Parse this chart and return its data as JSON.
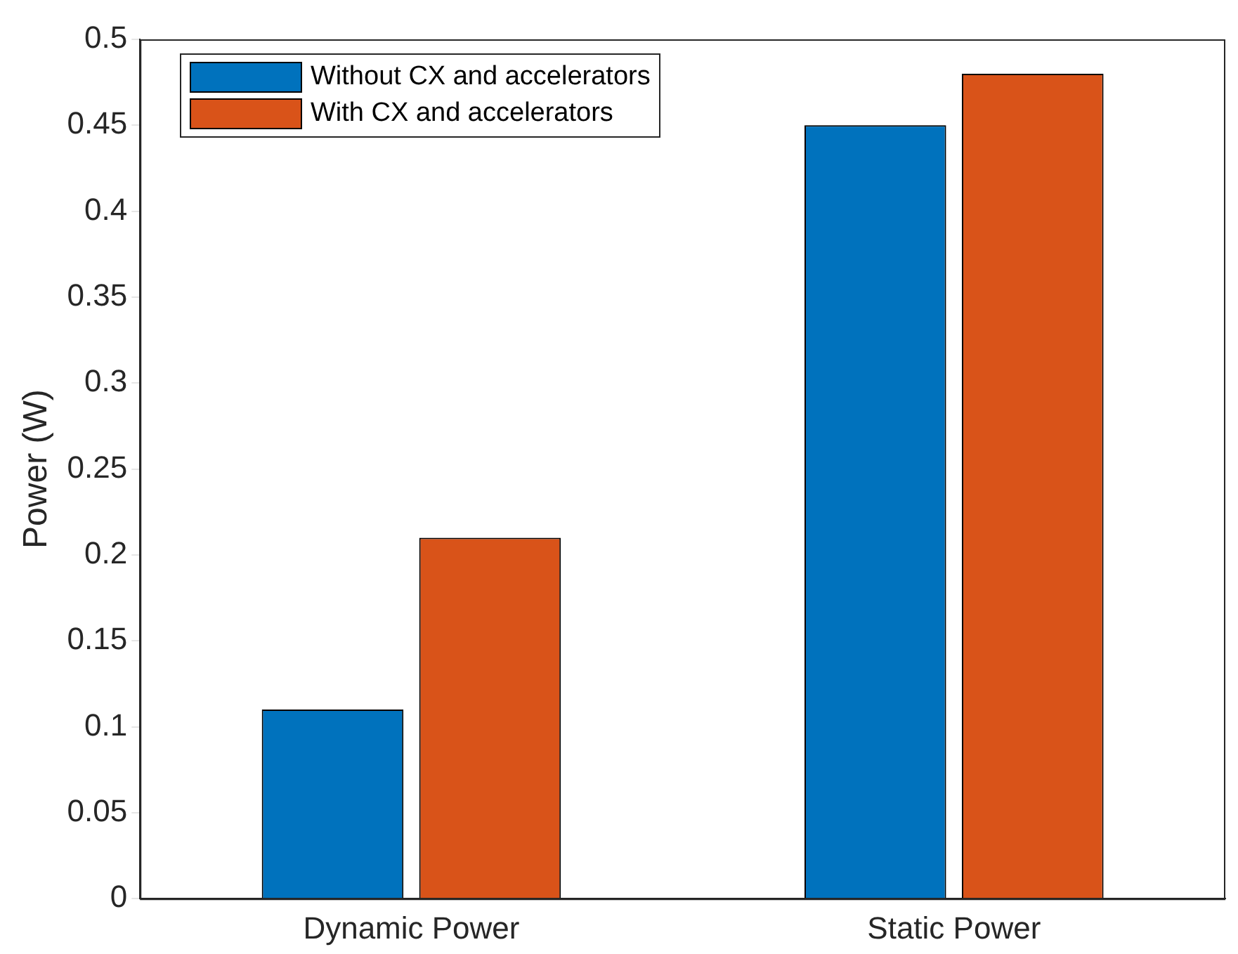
{
  "chart_data": {
    "type": "bar",
    "ylabel": "Power (W)",
    "categories": [
      "Dynamic Power",
      "Static Power"
    ],
    "series": [
      {
        "name": "Without CX and accelerators",
        "color": "#0072bd",
        "values": [
          0.11,
          0.45
        ]
      },
      {
        "name": "With CX and accelerators",
        "color": "#d95319",
        "values": [
          0.21,
          0.48
        ]
      }
    ],
    "ylim": [
      0,
      0.5
    ],
    "yticks": [
      0,
      0.05,
      0.1,
      0.15,
      0.2,
      0.25,
      0.3,
      0.35,
      0.4,
      0.45,
      0.5
    ],
    "grid": false,
    "legend": "top left"
  }
}
